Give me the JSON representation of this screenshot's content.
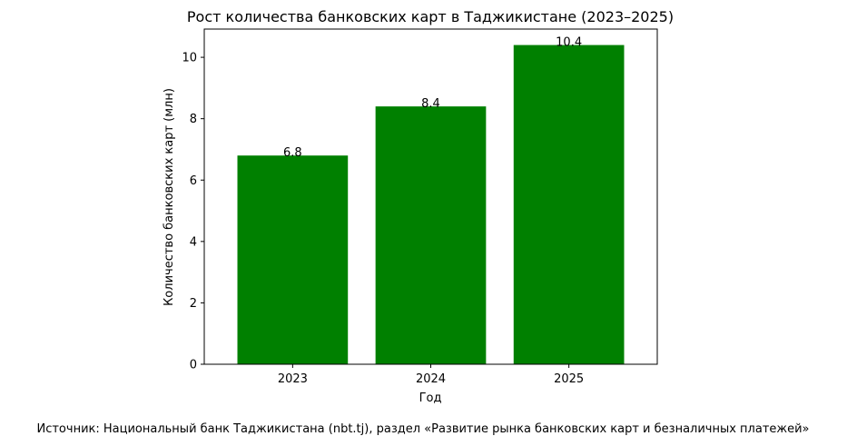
{
  "chart_data": {
    "type": "bar",
    "title": "Рост количества банковских карт в Таджикистане (2023–2025)",
    "x_label": "Год",
    "y_label": "Количество банковских карт (млн)",
    "categories": [
      "2023",
      "2024",
      "2025"
    ],
    "values": [
      6.8,
      8.4,
      10.4
    ],
    "color": "#008000",
    "ylim": [
      0,
      10.92
    ],
    "yticks": [
      0,
      2,
      4,
      6,
      8,
      10
    ],
    "grid": false,
    "source": "Источник: Национальный банк Таджикистана (nbt.tj), раздел «Развитие рынка банковских карт и безналичных платежей»"
  }
}
